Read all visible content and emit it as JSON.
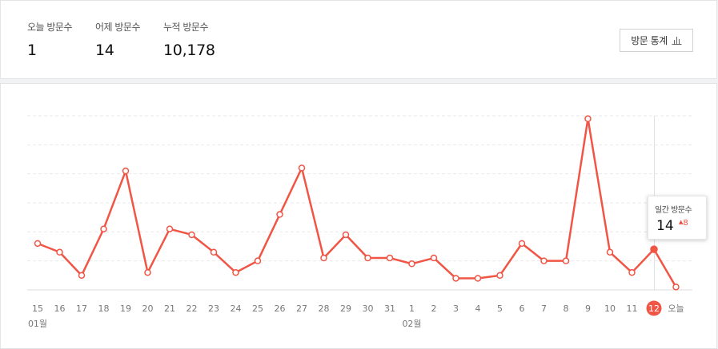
{
  "summary": {
    "today": {
      "label": "오늘 방문수",
      "value": "1"
    },
    "yesterday": {
      "label": "어제 방문수",
      "value": "14"
    },
    "total": {
      "label": "누적 방문수",
      "value": "10,178"
    },
    "stats_button": "방문 통계"
  },
  "chart_data": {
    "type": "line",
    "color": "#f05545",
    "x_labels": [
      "15",
      "16",
      "17",
      "18",
      "19",
      "20",
      "21",
      "22",
      "23",
      "24",
      "25",
      "26",
      "27",
      "28",
      "29",
      "30",
      "31",
      "1",
      "2",
      "3",
      "4",
      "5",
      "6",
      "7",
      "8",
      "9",
      "10",
      "11",
      "12",
      "오늘"
    ],
    "month_labels": [
      {
        "index": 0,
        "label": "01월"
      },
      {
        "index": 17,
        "label": "02월"
      }
    ],
    "selected_index": 28,
    "values": [
      16,
      13,
      5,
      21,
      41,
      6,
      21,
      19,
      13,
      6,
      10,
      26,
      42,
      11,
      19,
      11,
      11,
      9,
      11,
      4,
      4,
      5,
      16,
      10,
      10,
      59,
      13,
      6,
      14,
      1
    ],
    "ylim": [
      0,
      60
    ],
    "grid": true
  },
  "tooltip": {
    "label": "일간 방문수",
    "value": "14",
    "delta": "8",
    "delta_color": "#ee4f40"
  }
}
